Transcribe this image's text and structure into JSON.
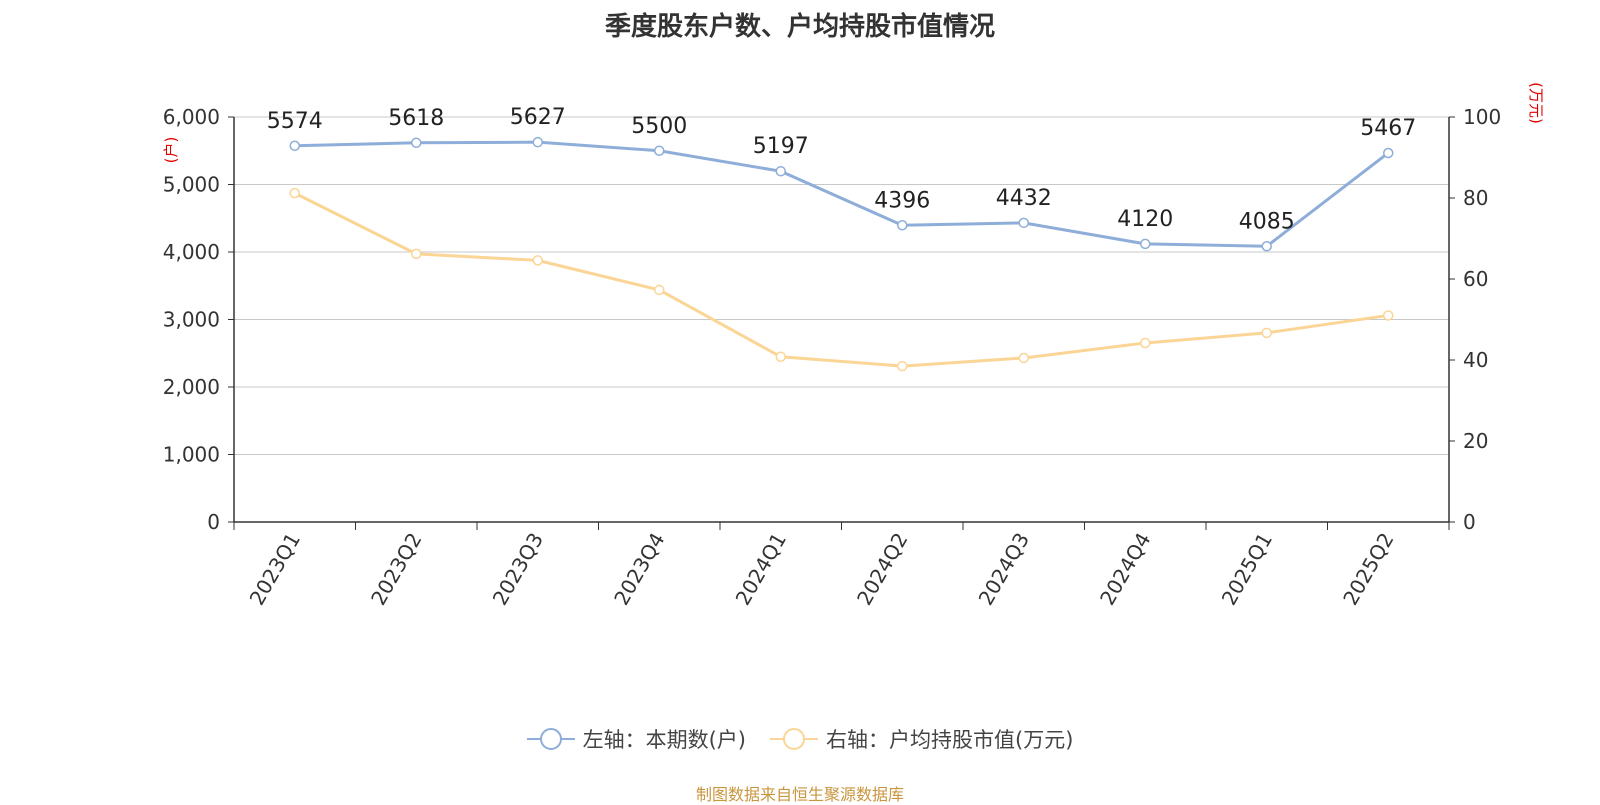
{
  "title": "季度股东户数、户均持股市值情况",
  "source": "制图数据来自恒生聚源数据库",
  "colors": {
    "series1": "#8eaed9",
    "series2": "#fbd596",
    "unit": "#e00000",
    "grid": "#c8c8c8",
    "axis": "#333333"
  },
  "legend": [
    {
      "label": "左轴：本期数(户)",
      "icon": "circle-line-marker-icon",
      "color": "#8eaed9"
    },
    {
      "label": "右轴：户均持股市值(万元)",
      "icon": "circle-line-marker-icon",
      "color": "#fbd596"
    }
  ],
  "chart_data": {
    "type": "line",
    "title": "季度股东户数、户均持股市值情况",
    "categories": [
      "2023Q1",
      "2023Q2",
      "2023Q3",
      "2023Q4",
      "2024Q1",
      "2024Q2",
      "2024Q3",
      "2024Q4",
      "2025Q1",
      "2025Q2"
    ],
    "left_axis": {
      "unit": "(户)",
      "ylim": [
        0,
        6000
      ],
      "ticks": [
        "0",
        "1,000",
        "2,000",
        "3,000",
        "4,000",
        "5,000",
        "6,000"
      ]
    },
    "right_axis": {
      "unit": "(万元)",
      "ylim": [
        0,
        100
      ],
      "ticks": [
        "0",
        "20",
        "40",
        "60",
        "80",
        "100"
      ]
    },
    "grid": true,
    "legend_position": "bottom",
    "series": [
      {
        "name": "左轴：本期数(户)",
        "axis": "left",
        "values": [
          5574,
          5618,
          5627,
          5500,
          5197,
          4396,
          4432,
          4120,
          4085,
          5467
        ],
        "labels": [
          "5574",
          "5618",
          "5627",
          "5500",
          "5197",
          "4396",
          "4432",
          "4120",
          "4085",
          "5467"
        ]
      },
      {
        "name": "右轴：户均持股市值(万元)",
        "axis": "right",
        "values": [
          81.2,
          66.2,
          64.6,
          57.3,
          40.8,
          38.5,
          40.5,
          44.2,
          46.7,
          51.0
        ]
      }
    ]
  }
}
